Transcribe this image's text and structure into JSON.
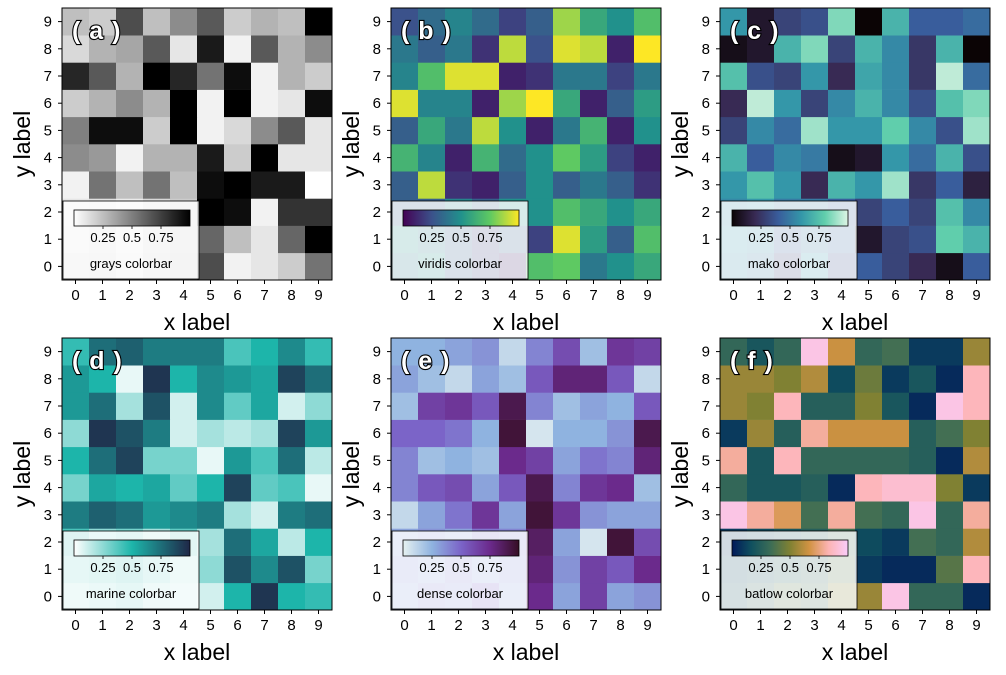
{
  "figure": {
    "background": "#ffffff"
  },
  "chart_data": [
    {
      "type": "heatmap",
      "panel_label": "( a )",
      "xlabel": "x label",
      "ylabel": "y label",
      "x": [
        0,
        1,
        2,
        3,
        4,
        5,
        6,
        7,
        8,
        9
      ],
      "y": [
        0,
        1,
        2,
        3,
        4,
        5,
        6,
        7,
        8,
        9
      ],
      "colormap": "grays",
      "colorbar_label": "grays colorbar",
      "colorbar_ticks": [
        "0.25",
        "0.5",
        "0.75"
      ],
      "colormap_stops": [
        "#ffffff",
        "#000000"
      ],
      "z": [
        [
          0.15,
          0.18,
          0.12,
          0.2,
          0.25,
          0.7,
          0.05,
          0.1,
          0.2,
          0.55
        ],
        [
          0.12,
          0.15,
          0.1,
          0.18,
          0.22,
          0.6,
          0.25,
          0.1,
          0.6,
          1.0
        ],
        [
          0.1,
          0.12,
          0.08,
          0.15,
          0.2,
          1.0,
          0.95,
          0.05,
          0.8,
          0.8
        ],
        [
          0.05,
          0.55,
          0.25,
          0.55,
          0.25,
          0.95,
          1.0,
          0.9,
          0.9,
          0.0
        ],
        [
          0.45,
          0.4,
          0.05,
          0.3,
          0.3,
          0.9,
          0.2,
          1.0,
          0.1,
          0.1
        ],
        [
          0.5,
          0.95,
          0.95,
          0.2,
          1.0,
          0.05,
          0.15,
          0.45,
          0.65,
          0.1
        ],
        [
          0.2,
          0.3,
          0.45,
          0.3,
          1.0,
          0.05,
          1.0,
          0.05,
          0.1,
          0.95
        ],
        [
          0.85,
          0.65,
          0.3,
          1.0,
          0.85,
          0.55,
          0.95,
          0.05,
          0.3,
          0.2
        ],
        [
          0.15,
          0.3,
          0.35,
          0.65,
          0.1,
          0.9,
          0.05,
          0.65,
          0.3,
          0.45
        ],
        [
          0.25,
          0.2,
          0.7,
          0.25,
          0.45,
          0.65,
          0.2,
          0.3,
          0.25,
          1.0
        ]
      ]
    },
    {
      "type": "heatmap",
      "panel_label": "( b )",
      "xlabel": "x label",
      "ylabel": "y label",
      "x": [
        0,
        1,
        2,
        3,
        4,
        5,
        6,
        7,
        8,
        9
      ],
      "y": [
        0,
        1,
        2,
        3,
        4,
        5,
        6,
        7,
        8,
        9
      ],
      "colormap": "viridis",
      "colorbar_label": "viridis colorbar",
      "colorbar_ticks": [
        "0.25",
        "0.5",
        "0.75"
      ],
      "colormap_stops": [
        "#440154",
        "#3b528b",
        "#21918c",
        "#5ec962",
        "#fde725"
      ],
      "z": [
        [
          0.4,
          0.5,
          0.3,
          0.2,
          0.1,
          0.7,
          0.75,
          0.4,
          0.5,
          0.6
        ],
        [
          0.5,
          0.4,
          0.3,
          0.2,
          0.3,
          0.2,
          0.95,
          0.55,
          0.3,
          0.7
        ],
        [
          0.3,
          0.3,
          0.45,
          0.3,
          0.5,
          0.5,
          0.7,
          0.6,
          0.5,
          0.6
        ],
        [
          0.3,
          0.9,
          0.15,
          0.1,
          0.3,
          0.5,
          0.3,
          0.4,
          0.3,
          0.15
        ],
        [
          0.65,
          0.45,
          0.1,
          0.65,
          0.35,
          0.5,
          0.75,
          0.55,
          0.2,
          0.1
        ],
        [
          0.3,
          0.6,
          0.4,
          0.9,
          0.5,
          0.1,
          0.4,
          0.65,
          0.1,
          0.5
        ],
        [
          0.95,
          0.45,
          0.45,
          0.1,
          0.85,
          1.0,
          0.6,
          0.1,
          0.3,
          0.55
        ],
        [
          0.45,
          0.7,
          0.95,
          0.95,
          0.1,
          0.15,
          0.4,
          0.4,
          0.2,
          0.4
        ],
        [
          0.4,
          0.3,
          0.4,
          0.15,
          0.9,
          0.25,
          0.95,
          0.9,
          0.1,
          1.0
        ],
        [
          0.25,
          0.35,
          0.45,
          0.35,
          0.2,
          0.3,
          0.85,
          0.6,
          0.5,
          0.7
        ]
      ]
    },
    {
      "type": "heatmap",
      "panel_label": "( c )",
      "xlabel": "x label",
      "ylabel": "y label",
      "x": [
        0,
        1,
        2,
        3,
        4,
        5,
        6,
        7,
        8,
        9
      ],
      "y": [
        0,
        1,
        2,
        3,
        4,
        5,
        6,
        7,
        8,
        9
      ],
      "colormap": "mako",
      "colorbar_label": "mako colorbar",
      "colorbar_ticks": [
        "0.25",
        "0.5",
        "0.75"
      ],
      "colormap_stops": [
        "#0b0405",
        "#382a54",
        "#395d9c",
        "#3497a9",
        "#60ceac",
        "#def5e5"
      ],
      "z": [
        [
          0.55,
          0.5,
          0.3,
          0.6,
          0.35,
          0.4,
          0.3,
          0.2,
          0.05,
          0.4
        ],
        [
          0.6,
          0.55,
          0.4,
          0.5,
          0.45,
          0.1,
          0.3,
          0.35,
          0.8,
          0.7
        ],
        [
          0.55,
          0.6,
          0.5,
          0.5,
          0.4,
          0.3,
          0.4,
          0.3,
          0.75,
          0.55
        ],
        [
          0.6,
          0.75,
          0.6,
          0.2,
          0.7,
          0.6,
          0.9,
          0.25,
          0.4,
          0.15
        ],
        [
          0.7,
          0.4,
          0.55,
          0.5,
          0.05,
          0.1,
          0.6,
          0.45,
          0.7,
          0.35
        ],
        [
          0.3,
          0.55,
          0.45,
          0.9,
          0.6,
          0.6,
          0.8,
          0.55,
          0.35,
          0.9
        ],
        [
          0.2,
          0.95,
          0.6,
          0.3,
          0.55,
          0.7,
          0.55,
          0.35,
          0.75,
          0.85
        ],
        [
          0.75,
          0.35,
          0.3,
          0.6,
          0.2,
          0.65,
          0.55,
          0.25,
          0.95,
          0.45
        ],
        [
          0.05,
          0.1,
          0.7,
          0.85,
          0.3,
          0.7,
          0.55,
          0.25,
          0.7,
          0.0
        ],
        [
          0.6,
          0.1,
          0.3,
          0.35,
          0.85,
          0.0,
          0.7,
          0.4,
          0.4,
          0.45
        ]
      ]
    },
    {
      "type": "heatmap",
      "panel_label": "( d )",
      "xlabel": "x label",
      "ylabel": "y label",
      "x": [
        0,
        1,
        2,
        3,
        4,
        5,
        6,
        7,
        8,
        9
      ],
      "y": [
        0,
        1,
        2,
        3,
        4,
        5,
        6,
        7,
        8,
        9
      ],
      "colormap": "marine",
      "colorbar_label": "marine colorbar",
      "colorbar_ticks": [
        "0.25",
        "0.5",
        "0.75"
      ],
      "colormap_stops": [
        "#ffffff",
        "#1db5aa",
        "#1f2747"
      ],
      "z": [
        [
          0.2,
          0.25,
          0.3,
          0.2,
          0.15,
          0.1,
          0.5,
          0.95,
          0.5,
          0.45
        ],
        [
          0.3,
          0.35,
          0.4,
          0.3,
          0.2,
          0.25,
          0.85,
          0.65,
          0.85,
          0.3
        ],
        [
          0.4,
          0.25,
          0.3,
          0.2,
          0.35,
          0.2,
          0.75,
          0.55,
          0.15,
          0.5
        ],
        [
          0.7,
          0.8,
          0.75,
          0.6,
          0.65,
          0.7,
          0.2,
          0.1,
          0.7,
          0.75
        ],
        [
          0.3,
          0.55,
          0.5,
          0.55,
          0.35,
          0.5,
          0.9,
          0.35,
          0.4,
          0.05
        ],
        [
          0.5,
          0.75,
          0.9,
          0.3,
          0.3,
          0.05,
          0.6,
          0.4,
          0.75,
          0.15
        ],
        [
          0.25,
          0.95,
          0.85,
          0.7,
          0.1,
          0.2,
          0.15,
          0.2,
          0.9,
          0.6
        ],
        [
          0.6,
          0.75,
          0.2,
          0.85,
          0.1,
          0.65,
          0.35,
          0.55,
          0.1,
          0.25
        ],
        [
          0.6,
          0.5,
          0.05,
          0.95,
          0.5,
          0.65,
          0.6,
          0.55,
          0.9,
          0.75
        ],
        [
          0.45,
          0.75,
          0.8,
          0.7,
          0.7,
          0.7,
          0.4,
          0.5,
          0.65,
          0.45
        ]
      ]
    },
    {
      "type": "heatmap",
      "panel_label": "( e )",
      "xlabel": "x label",
      "ylabel": "y label",
      "x": [
        0,
        1,
        2,
        3,
        4,
        5,
        6,
        7,
        8,
        9
      ],
      "y": [
        0,
        1,
        2,
        3,
        4,
        5,
        6,
        7,
        8,
        9
      ],
      "colormap": "dense",
      "colorbar_label": "dense colorbar",
      "colorbar_ticks": [
        "0.25",
        "0.5",
        "0.75"
      ],
      "colormap_stops": [
        "#e6f1f1",
        "#8fb3e0",
        "#7b64c8",
        "#6b2a8c",
        "#360e24"
      ],
      "z": [
        [
          0.3,
          0.4,
          0.35,
          0.5,
          0.3,
          0.75,
          0.3,
          0.65,
          0.3,
          0.35
        ],
        [
          0.35,
          0.3,
          0.4,
          0.3,
          0.35,
          0.8,
          0.35,
          0.65,
          0.55,
          0.75
        ],
        [
          0.3,
          0.35,
          0.3,
          0.45,
          0.4,
          0.85,
          0.3,
          0.05,
          0.95,
          0.6
        ],
        [
          0.1,
          0.3,
          0.45,
          0.7,
          0.3,
          0.95,
          0.7,
          0.35,
          0.3,
          0.3
        ],
        [
          0.4,
          0.55,
          0.6,
          0.3,
          0.55,
          0.9,
          0.4,
          0.7,
          0.75,
          0.2
        ],
        [
          0.4,
          0.2,
          0.25,
          0.2,
          0.75,
          0.65,
          0.3,
          0.45,
          0.4,
          0.8
        ],
        [
          0.5,
          0.5,
          0.45,
          0.25,
          0.95,
          0.05,
          0.25,
          0.25,
          0.35,
          0.9
        ],
        [
          0.2,
          0.65,
          0.7,
          0.55,
          0.9,
          0.4,
          0.2,
          0.3,
          0.25,
          0.55
        ],
        [
          0.3,
          0.2,
          0.1,
          0.3,
          0.2,
          0.55,
          0.8,
          0.8,
          0.55,
          0.1
        ],
        [
          0.25,
          0.25,
          0.3,
          0.35,
          0.1,
          0.4,
          0.6,
          0.2,
          0.7,
          0.65
        ]
      ]
    },
    {
      "type": "heatmap",
      "panel_label": "( f )",
      "xlabel": "x label",
      "ylabel": "y label",
      "x": [
        0,
        1,
        2,
        3,
        4,
        5,
        6,
        7,
        8,
        9
      ],
      "y": [
        0,
        1,
        2,
        3,
        4,
        5,
        6,
        7,
        8,
        9
      ],
      "colormap": "batlow",
      "colorbar_label": "batlow colorbar",
      "colorbar_ticks": [
        "0.25",
        "0.5",
        "0.75"
      ],
      "colormap_stops": [
        "#011959",
        "#10505f",
        "#3c6d56",
        "#808133",
        "#d29343",
        "#fdb4b4",
        "#faccfa"
      ],
      "z": [
        [
          0.2,
          0.3,
          0.4,
          0.35,
          0.5,
          0.55,
          0.95,
          0.3,
          0.3,
          0.05
        ],
        [
          0.15,
          0.2,
          0.25,
          0.3,
          0.4,
          0.1,
          0.05,
          0.05,
          0.4,
          0.85
        ],
        [
          0.1,
          0.15,
          0.2,
          0.25,
          0.35,
          0.15,
          0.1,
          0.35,
          0.3,
          0.6
        ],
        [
          0.95,
          0.8,
          0.7,
          0.35,
          0.8,
          0.35,
          0.3,
          0.95,
          0.3,
          0.8
        ],
        [
          0.3,
          0.2,
          0.2,
          0.25,
          0.05,
          0.85,
          0.9,
          0.9,
          0.5,
          0.1
        ],
        [
          0.8,
          0.2,
          0.85,
          0.3,
          0.3,
          0.3,
          0.3,
          0.25,
          0.05,
          0.6
        ],
        [
          0.1,
          0.55,
          0.25,
          0.8,
          0.65,
          0.65,
          0.65,
          0.25,
          0.35,
          0.5
        ],
        [
          0.55,
          0.5,
          0.85,
          0.25,
          0.25,
          0.5,
          0.2,
          0.05,
          0.95,
          0.85
        ],
        [
          0.55,
          0.55,
          0.5,
          0.6,
          0.15,
          0.45,
          0.1,
          0.2,
          0.05,
          0.85
        ],
        [
          0.3,
          0.2,
          0.3,
          0.95,
          0.65,
          0.3,
          0.35,
          0.1,
          0.1,
          0.55
        ]
      ]
    }
  ]
}
